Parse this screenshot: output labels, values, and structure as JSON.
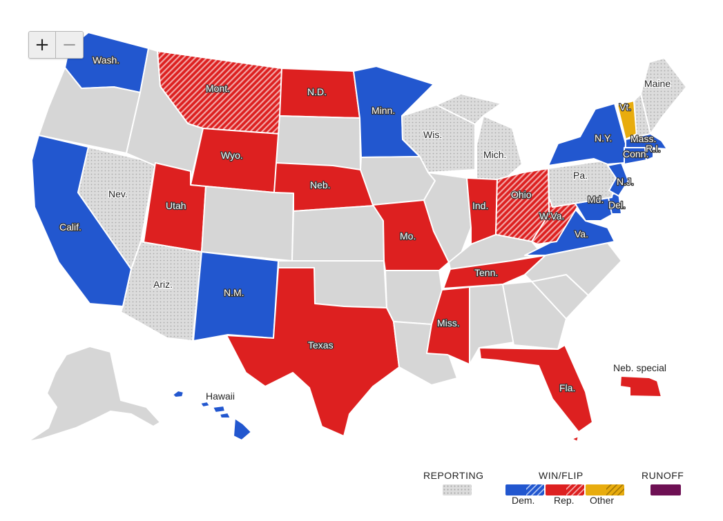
{
  "zoom": {
    "in_label": "+",
    "out_label": "−"
  },
  "colors": {
    "dem": "#2257cf",
    "rep": "#dd2020",
    "other": "#e8ac0e",
    "runoff": "#6e1054",
    "reporting": "#dcdcdc",
    "no_race": "#d6d6d6",
    "border": "#ffffff"
  },
  "states": {
    "wa": "Wash.",
    "mt": "Mont.",
    "nd": "N.D.",
    "mn": "Minn.",
    "me": "Maine",
    "vt": "Vt.",
    "wi": "Wis.",
    "mi": "Mich.",
    "ny": "N.Y.",
    "ma": "Mass.",
    "ct": "Conn.",
    "ri": "R.I.",
    "wy": "Wyo.",
    "ne": "Neb.",
    "pa": "Pa.",
    "nj": "N.J.",
    "nv": "Nev.",
    "ut": "Utah",
    "oh": "Ohio",
    "in": "Ind.",
    "md": "Md.",
    "de": "Del.",
    "ca": "Calif.",
    "wv": "W.Va.",
    "mo": "Mo.",
    "va": "Va.",
    "tn": "Tenn.",
    "az": "Ariz.",
    "nm": "N.M.",
    "ms": "Miss.",
    "tx": "Texas",
    "fl": "Fla.",
    "hi": "Hawaii",
    "ne_special": "Neb. special"
  },
  "legend": {
    "reporting": "REPORTING",
    "win_flip": "WIN/FLIP",
    "runoff": "RUNOFF",
    "dem": "Dem.",
    "rep": "Rep.",
    "other": "Other"
  }
}
